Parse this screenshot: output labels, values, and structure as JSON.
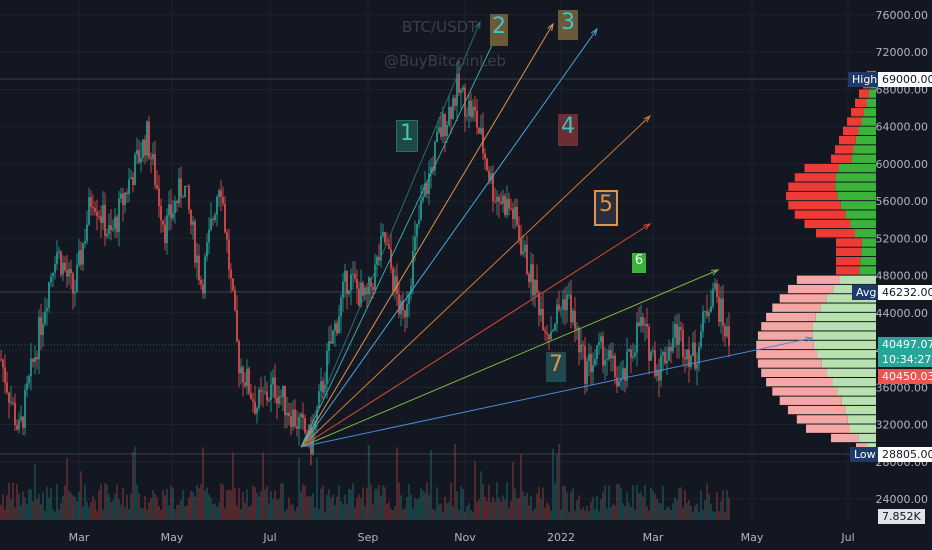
{
  "watermark": {
    "symbol": "BTC/USDT",
    "handle": "@BuyBitcoinLeb"
  },
  "colors": {
    "background": "#131722",
    "up": "#26a69a",
    "down": "#ef5350",
    "grid": "#1e222d",
    "vp_up": "#3bb33b",
    "vp_down": "#ef3b36",
    "vp_up_light": "#b7e2b0",
    "vp_down_light": "#f4a7a5"
  },
  "chart_data": {
    "type": "candlestick",
    "title": "BTC/USDT",
    "ylim": [
      22000,
      77000
    ],
    "y_ticks": [
      "76000.00",
      "72000.00",
      "68000.00",
      "64000.00",
      "60000.00",
      "56000.00",
      "52000.00",
      "48000.00",
      "44000.00",
      "40000.00",
      "36000.00",
      "32000.00",
      "28000.00",
      "24000.00"
    ],
    "x_ticks": [
      "Mar",
      "May",
      "Jul",
      "Sep",
      "Nov",
      "2022",
      "Mar",
      "May",
      "Jul"
    ],
    "price_path": [
      [
        0,
        39000
      ],
      [
        4,
        31000
      ],
      [
        8,
        41000
      ],
      [
        12,
        51000
      ],
      [
        16,
        46000
      ],
      [
        20,
        57000
      ],
      [
        24,
        52000
      ],
      [
        28,
        58000
      ],
      [
        32,
        63000
      ],
      [
        36,
        53000
      ],
      [
        40,
        58000
      ],
      [
        44,
        47000
      ],
      [
        48,
        59000
      ],
      [
        52,
        39000
      ],
      [
        56,
        34000
      ],
      [
        60,
        36000
      ],
      [
        64,
        33000
      ],
      [
        68,
        30000
      ],
      [
        72,
        40000
      ],
      [
        76,
        48000
      ],
      [
        80,
        45000
      ],
      [
        84,
        52000
      ],
      [
        88,
        43000
      ],
      [
        92,
        55000
      ],
      [
        96,
        63000
      ],
      [
        100,
        68000
      ],
      [
        104,
        65000
      ],
      [
        108,
        57000
      ],
      [
        112,
        55000
      ],
      [
        116,
        48000
      ],
      [
        120,
        42000
      ],
      [
        124,
        46000
      ],
      [
        128,
        38000
      ],
      [
        132,
        40000
      ],
      [
        136,
        36000
      ],
      [
        140,
        43000
      ],
      [
        144,
        38000
      ],
      [
        148,
        42000
      ],
      [
        152,
        39000
      ],
      [
        156,
        47000
      ],
      [
        160,
        40000
      ]
    ],
    "levels": [
      {
        "label": "High",
        "value": "69000.00"
      },
      {
        "label": "Avg",
        "value": "46232.00"
      },
      {
        "label": "Low",
        "value": "28805.00"
      }
    ],
    "price_tags": [
      {
        "text": "40497.07",
        "color": "#26a69a"
      },
      {
        "text": "10:34:27",
        "color": "#26a69a"
      },
      {
        "text": "40450.03",
        "color": "#ef5350"
      }
    ],
    "volume_tag": "7.852K",
    "fan_lines": [
      {
        "id": "1",
        "color": "#2a6b6b"
      },
      {
        "id": "2",
        "color": "#3ea6a6"
      },
      {
        "id": "3",
        "color": "#e0934a"
      },
      {
        "id": "3b",
        "color": "#4aa6d8"
      },
      {
        "id": "4",
        "color": "#d07a3a"
      },
      {
        "id": "5",
        "color": "#d94a3a"
      },
      {
        "id": "6",
        "color": "#7ab840"
      },
      {
        "id": "7",
        "color": "#4a8ad8"
      }
    ],
    "fan_labels": [
      "1",
      "2",
      "3",
      "4",
      "5",
      "6",
      "7"
    ]
  }
}
